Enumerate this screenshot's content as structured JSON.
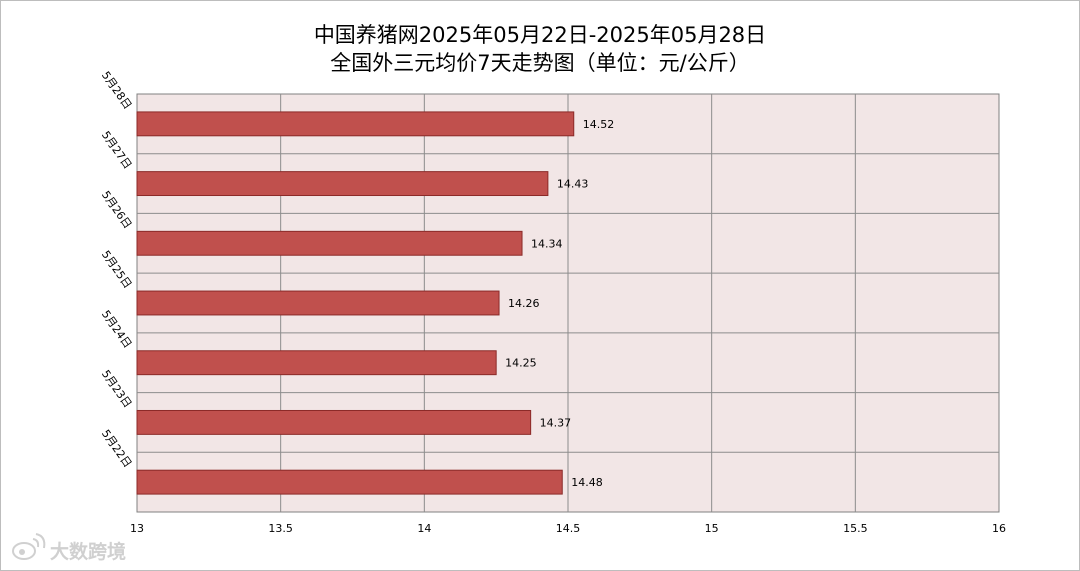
{
  "chart_data": {
    "type": "bar",
    "orientation": "horizontal",
    "title_line1": "中国养猪网2025年05月22日-2025年05月28日",
    "title_line2": "全国外三元均价7天走势图（单位：元/公斤）",
    "categories": [
      "5月28日",
      "5月27日",
      "5月26日",
      "5月25日",
      "5月24日",
      "5月23日",
      "5月22日"
    ],
    "values": [
      14.52,
      14.43,
      14.34,
      14.26,
      14.25,
      14.37,
      14.48
    ],
    "value_labels": [
      "14.52",
      "14.43",
      "14.34",
      "14.26",
      "14.25",
      "14.37",
      "14.48"
    ],
    "xlim": [
      13,
      16
    ],
    "x_ticks": [
      "13",
      "13.5",
      "14",
      "14.5",
      "15",
      "15.5",
      "16"
    ],
    "x_tick_values": [
      13,
      13.5,
      14,
      14.5,
      15,
      15.5,
      16
    ],
    "grid": true,
    "legend": "none",
    "bar_color": "#c0504d",
    "plot_background": "#f2e6e6"
  },
  "watermark": {
    "text": "大数跨境",
    "icon": "weibo-logo-icon"
  }
}
